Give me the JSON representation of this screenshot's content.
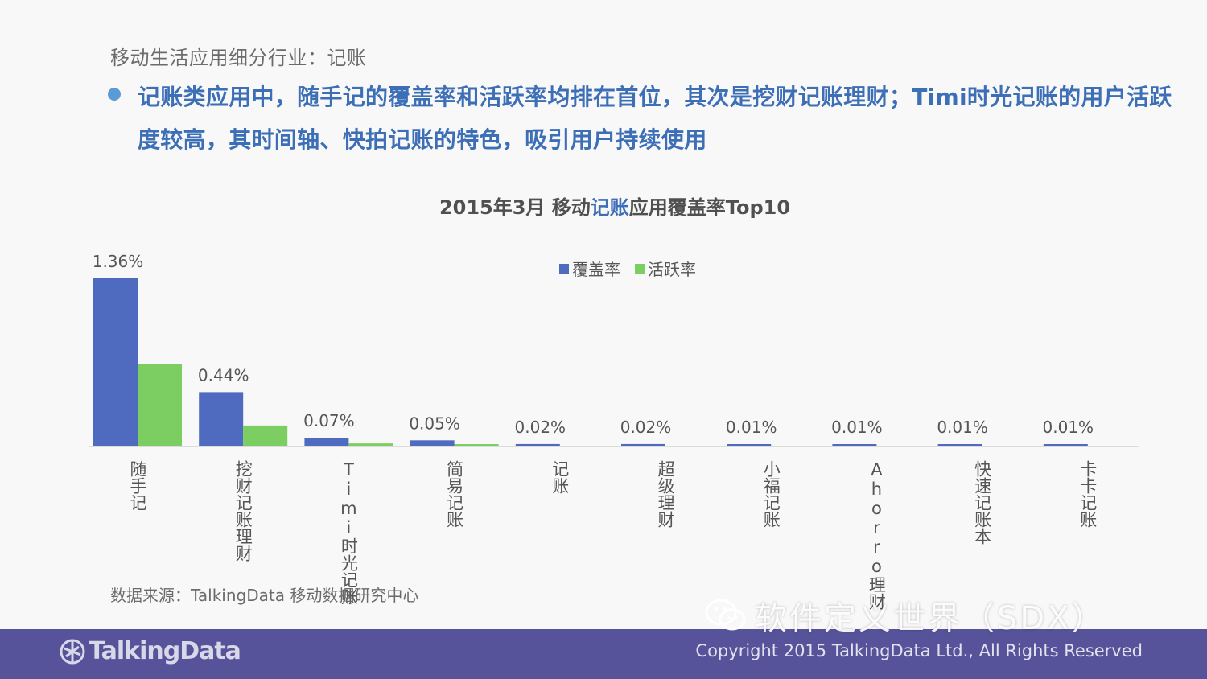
{
  "header": {
    "section_title": "移动生活应用细分行业：记账",
    "bullet": "记账类应用中，随手记的覆盖率和活跃率均排在首位，其次是挖财记账理财；Timi时光记账的用户活跃度较高，其时间轴、快拍记账的特色，吸引用户持续使用"
  },
  "chart_title": {
    "part1": "2015年3月 移动",
    "part2": "记账",
    "part3": "应用覆盖率Top10"
  },
  "colors": {
    "coverage": "#4f6bbf",
    "active": "#7ccd62"
  },
  "chart_data": {
    "type": "bar",
    "title": "2015年3月 移动记账应用覆盖率Top10",
    "categories": [
      "随手记",
      "挖财记账理财",
      "Timi时光记账",
      "简易记账",
      "记账",
      "超级理财",
      "小福记账",
      "Ahorro理财",
      "快速记账本",
      "卡卡记账"
    ],
    "series": [
      {
        "name": "覆盖率",
        "values": [
          1.36,
          0.44,
          0.07,
          0.05,
          0.02,
          0.02,
          0.01,
          0.01,
          0.01,
          0.01
        ]
      },
      {
        "name": "活跃率",
        "values": [
          0.67,
          0.17,
          0.025,
          0.01,
          0.0,
          0.0,
          0.0,
          0.0,
          0.0,
          0.0
        ]
      }
    ],
    "data_labels": [
      "1.36%",
      "0.44%",
      "0.07%",
      "0.05%",
      "0.02%",
      "0.02%",
      "0.01%",
      "0.01%",
      "0.01%",
      "0.01%"
    ],
    "ylim": [
      0,
      1.36
    ],
    "legend": "top-center",
    "grid": false
  },
  "source": "数据来源：TalkingData 移动数据研究中心",
  "footer": {
    "logo_text": "TalkingData",
    "copyright": "Copyright 2015 TalkingData Ltd., All Rights Reserved"
  },
  "watermark": {
    "text": "软件定义世界（SDX）",
    "icon": "wechat-icon"
  }
}
